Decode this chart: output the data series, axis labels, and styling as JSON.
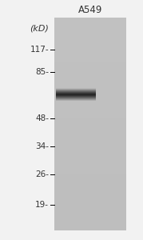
{
  "title": "A549",
  "kd_label": "(kD)",
  "markers": [
    117,
    85,
    48,
    34,
    26,
    19
  ],
  "background_color": "#e8e8e8",
  "gel_gray": 0.76,
  "band_color_alpha": 0.92,
  "title_fontsize": 8.5,
  "marker_fontsize": 7.5,
  "kd_fontsize": 8
}
